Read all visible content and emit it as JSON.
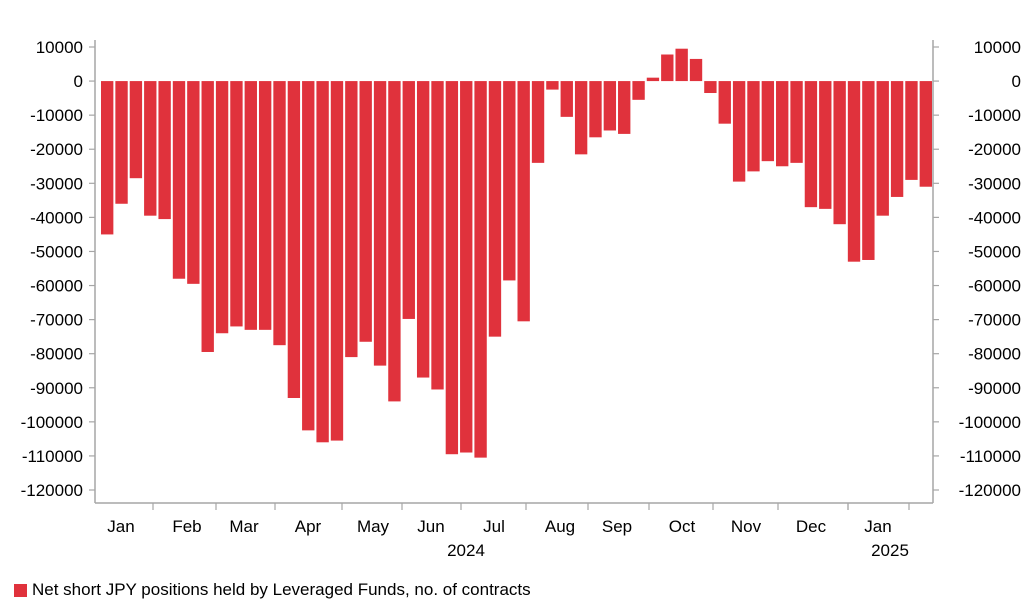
{
  "chart_data": {
    "type": "bar",
    "y_axis_ticks": [
      10000,
      0,
      -10000,
      -20000,
      -30000,
      -40000,
      -50000,
      -60000,
      -70000,
      -80000,
      -90000,
      -100000,
      -110000,
      -120000
    ],
    "ylim": [
      -120000,
      10000
    ],
    "month_labels": [
      "Jan",
      "Feb",
      "Mar",
      "Apr",
      "May",
      "Jun",
      "Jul",
      "Aug",
      "Sep",
      "Oct",
      "Nov",
      "Dec",
      "Jan"
    ],
    "year_labels": [
      "2024",
      "2025"
    ],
    "series": [
      {
        "name": "Net short JPY positions held by Leveraged Funds, no. of contracts",
        "color": "#e0323c",
        "values": [
          -45000,
          -36000,
          -28500,
          -39500,
          -40500,
          -58000,
          -59500,
          -79500,
          -74000,
          -72000,
          -73000,
          -73000,
          -77500,
          -93000,
          -102500,
          -106000,
          -105500,
          -81000,
          -76500,
          -83500,
          -94000,
          -69800,
          -87000,
          -90500,
          -109500,
          -109000,
          -110500,
          -75000,
          -58500,
          -70500,
          -24000,
          -2500,
          -10500,
          -21500,
          -16500,
          -14500,
          -15500,
          -5500,
          1000,
          7800,
          9500,
          6500,
          -3500,
          -12500,
          -29500,
          -26500,
          -23500,
          -25000,
          -24000,
          -37000,
          -37500,
          -42000,
          -53000,
          -52500,
          -39500,
          -34000,
          -29000,
          -31000
        ]
      }
    ],
    "grid": false,
    "legend_position": "bottom-left"
  }
}
